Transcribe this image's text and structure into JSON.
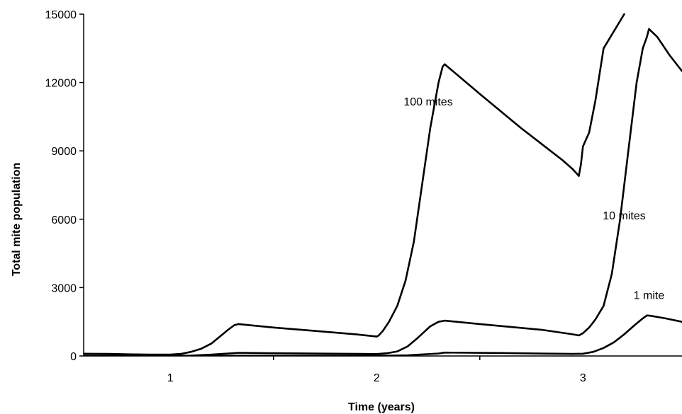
{
  "chart_data": {
    "type": "line",
    "title": "",
    "xlabel": "Time (years)",
    "ylabel": "Total mite population",
    "xlim": [
      0.58,
      3.48
    ],
    "ylim": [
      0,
      15000
    ],
    "xticks": [
      {
        "value": 1,
        "label": "1"
      },
      {
        "value": 2,
        "label": "2"
      },
      {
        "value": 3,
        "label": "3"
      }
    ],
    "yticks": [
      {
        "value": 0,
        "label": "0"
      },
      {
        "value": 3000,
        "label": "3000"
      },
      {
        "value": 6000,
        "label": "6000"
      },
      {
        "value": 9000,
        "label": "9000"
      },
      {
        "value": 12000,
        "label": "12000"
      },
      {
        "value": 15000,
        "label": "15000"
      }
    ],
    "grid": false,
    "legend": "none",
    "series": [
      {
        "name": "100 mites",
        "label_at": [
          2.25,
          11000
        ],
        "x": [
          0.58,
          0.7,
          0.8,
          0.9,
          1.0,
          1.05,
          1.1,
          1.15,
          1.2,
          1.24,
          1.28,
          1.31,
          1.33,
          1.5,
          1.7,
          1.9,
          2.0,
          2.01,
          2.03,
          2.06,
          2.1,
          2.14,
          2.18,
          2.22,
          2.26,
          2.3,
          2.32,
          2.33,
          2.5,
          2.7,
          2.9,
          2.95,
          2.97,
          2.98,
          2.99,
          3.0,
          3.03,
          3.06,
          3.1,
          3.2
        ],
        "y": [
          100,
          90,
          70,
          60,
          60,
          90,
          180,
          320,
          550,
          850,
          1150,
          1350,
          1400,
          1250,
          1100,
          950,
          850,
          900,
          1100,
          1500,
          2200,
          3300,
          5000,
          7500,
          10000,
          12000,
          12700,
          12800,
          11500,
          10000,
          8600,
          8200,
          8000,
          7900,
          8400,
          9200,
          9800,
          11200,
          13500,
          15000
        ]
      },
      {
        "name": "10 mites",
        "label_at": [
          3.2,
          6000
        ],
        "x": [
          0.58,
          0.9,
          1.0,
          1.1,
          1.2,
          1.28,
          1.33,
          1.5,
          1.8,
          2.0,
          2.05,
          2.1,
          2.15,
          2.2,
          2.26,
          2.3,
          2.33,
          2.5,
          2.8,
          2.95,
          2.98,
          3.0,
          3.03,
          3.06,
          3.1,
          3.14,
          3.18,
          3.22,
          3.26,
          3.29,
          3.31,
          3.32,
          3.36,
          3.42,
          3.48
        ],
        "y": [
          10,
          8,
          6,
          18,
          60,
          110,
          140,
          120,
          100,
          85,
          120,
          200,
          420,
          800,
          1300,
          1500,
          1550,
          1400,
          1150,
          950,
          900,
          1000,
          1250,
          1600,
          2200,
          3600,
          6000,
          9000,
          12000,
          13500,
          14000,
          14350,
          14000,
          13200,
          12500
        ]
      },
      {
        "name": "1 mite",
        "label_at": [
          3.32,
          2500
        ],
        "x": [
          0.58,
          1.0,
          1.2,
          1.33,
          1.6,
          2.0,
          2.15,
          2.3,
          2.33,
          2.6,
          2.95,
          3.0,
          3.05,
          3.1,
          3.15,
          3.2,
          3.25,
          3.29,
          3.31,
          3.33,
          3.4,
          3.48
        ],
        "y": [
          1,
          1,
          5,
          12,
          10,
          8,
          30,
          110,
          150,
          130,
          90,
          100,
          180,
          350,
          600,
          950,
          1350,
          1650,
          1780,
          1760,
          1650,
          1500
        ]
      }
    ]
  }
}
